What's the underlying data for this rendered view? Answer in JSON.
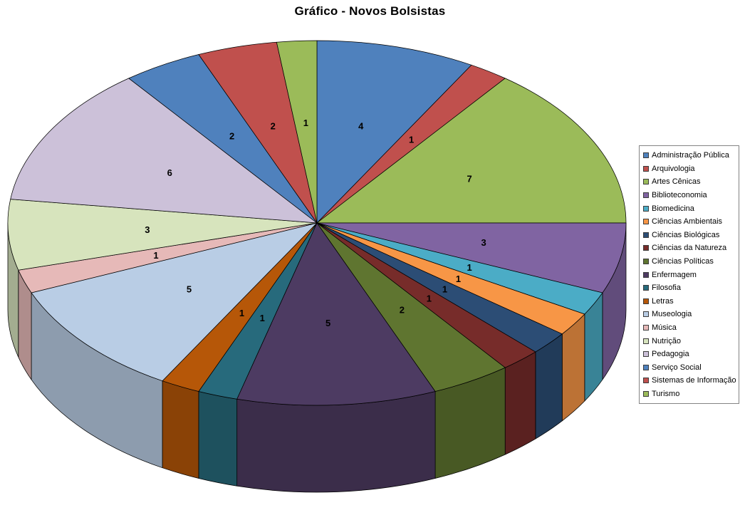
{
  "chart_data": {
    "type": "pie",
    "effect": "3d",
    "title": "Gráfico - Novos Bolsistas",
    "legend_position": "right",
    "data_labels": "value",
    "start_angle_deg": 0,
    "direction": "clockwise",
    "categories": [
      "Administração Pública",
      "Arquivologia",
      "Artes Cênicas",
      "Biblioteconomia",
      "Biomedicina",
      "Ciências Ambientais",
      "Ciências Biológicas",
      "Ciências da Natureza",
      "Ciências Políticas",
      "Enfermagem",
      "Filosofia",
      "Letras",
      "Museologia",
      "Música",
      "Nutrição",
      "Pedagogia",
      "Serviço Social",
      "Sistemas de Informação",
      "Turismo"
    ],
    "values": [
      4,
      1,
      7,
      3,
      1,
      1,
      1,
      1,
      2,
      5,
      1,
      1,
      5,
      1,
      3,
      6,
      2,
      2,
      1
    ],
    "colors": [
      "#4F81BD",
      "#C0504D",
      "#9BBB59",
      "#8064A2",
      "#4BACC6",
      "#F79646",
      "#2C4D75",
      "#772C2A",
      "#5F7530",
      "#4D3B62",
      "#276A7C",
      "#B65708",
      "#B9CDE5",
      "#E6B9B8",
      "#D7E4BD",
      "#CCC1D9",
      "#4F81BD",
      "#C0504D",
      "#9BBB59"
    ]
  }
}
